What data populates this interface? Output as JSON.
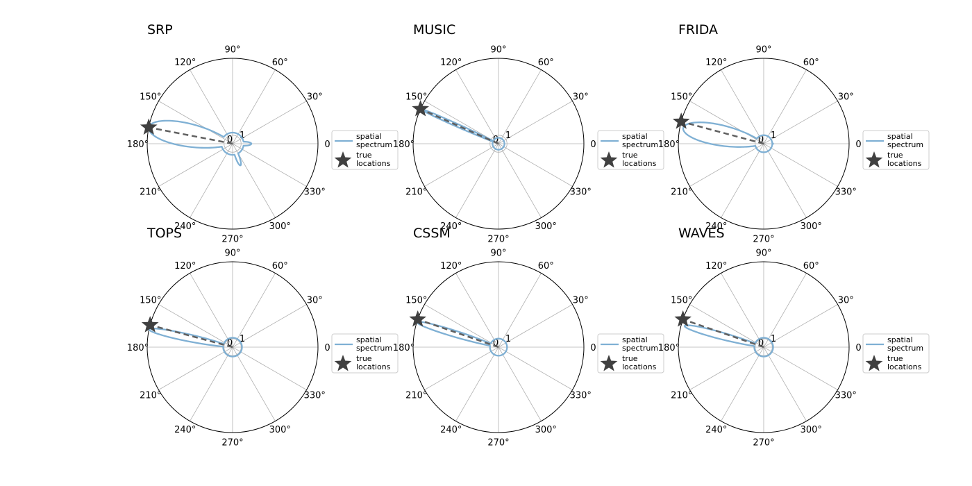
{
  "colors": {
    "spectrum": "#7fb0d4",
    "true_location": "#404040",
    "dashed": "#606060",
    "grid": "#b0b0b0",
    "frame": "#000000"
  },
  "chart_data": [
    {
      "type": "polar-line",
      "title": "SRP",
      "angle_ticks": [
        "0",
        "30°",
        "60°",
        "90°",
        "120°",
        "150°",
        "180°",
        "210°",
        "240°",
        "270°",
        "300°",
        "330°"
      ],
      "radial_ticks": [
        "0",
        "1"
      ],
      "true_location_deg": 169,
      "spectrum": {
        "floor": 0.13,
        "lobes": [
          {
            "center_deg": 169,
            "width_deg": 13,
            "height": 1.0
          },
          {
            "center_deg": 0,
            "width_deg": 10,
            "height": 0.22
          },
          {
            "center_deg": 290,
            "width_deg": 8,
            "height": 0.27
          },
          {
            "center_deg": 120,
            "width_deg": 12,
            "height": 0.1
          }
        ]
      },
      "legend": [
        "spatial\n spectrum",
        "true\n locations"
      ]
    },
    {
      "type": "polar-line",
      "title": "MUSIC",
      "angle_ticks": [
        "0",
        "30°",
        "60°",
        "90°",
        "120°",
        "150°",
        "180°",
        "210°",
        "240°",
        "270°",
        "300°",
        "330°"
      ],
      "radial_ticks": [
        "0",
        "1"
      ],
      "true_location_deg": 156,
      "spectrum": {
        "floor": 0.07,
        "lobes": [
          {
            "center_deg": 156,
            "width_deg": 1.6,
            "height": 1.0
          }
        ]
      },
      "legend": [
        "spatial\n spectrum",
        "true\n locations"
      ]
    },
    {
      "type": "polar-line",
      "title": "FRIDA",
      "angle_ticks": [
        "0",
        "30°",
        "60°",
        "90°",
        "120°",
        "150°",
        "180°",
        "210°",
        "240°",
        "270°",
        "300°",
        "330°"
      ],
      "radial_ticks": [
        "0",
        "1"
      ],
      "true_location_deg": 165,
      "spectrum": {
        "floor": 0.1,
        "lobes": [
          {
            "center_deg": 169,
            "width_deg": 12,
            "height": 0.96
          },
          {
            "center_deg": 0,
            "width_deg": 10,
            "height": 0.11
          },
          {
            "center_deg": 270,
            "width_deg": 12,
            "height": 0.08
          }
        ]
      },
      "legend": [
        "spatial\n spectrum",
        "true\n locations"
      ]
    },
    {
      "type": "polar-line",
      "title": "TOPS",
      "angle_ticks": [
        "0",
        "30°",
        "60°",
        "90°",
        "120°",
        "150°",
        "180°",
        "210°",
        "240°",
        "270°",
        "300°",
        "330°"
      ],
      "radial_ticks": [
        "0",
        "1"
      ],
      "true_location_deg": 165,
      "spectrum": {
        "floor": 0.11,
        "lobes": [
          {
            "center_deg": 168,
            "width_deg": 4,
            "height": 1.0
          }
        ]
      },
      "legend": [
        "spatial\n spectrum",
        "true\n locations"
      ]
    },
    {
      "type": "polar-line",
      "title": "CSSM",
      "angle_ticks": [
        "0",
        "30°",
        "60°",
        "90°",
        "120°",
        "150°",
        "180°",
        "210°",
        "240°",
        "270°",
        "300°",
        "330°"
      ],
      "radial_ticks": [
        "0",
        "1"
      ],
      "true_location_deg": 161,
      "spectrum": {
        "floor": 0.1,
        "lobes": [
          {
            "center_deg": 163,
            "width_deg": 3.5,
            "height": 1.0
          },
          {
            "center_deg": 320,
            "width_deg": 10,
            "height": 0.07
          }
        ]
      },
      "legend": [
        "spatial\n spectrum",
        "true\n locations"
      ]
    },
    {
      "type": "polar-line",
      "title": "WAVES",
      "angle_ticks": [
        "0",
        "30°",
        "60°",
        "90°",
        "120°",
        "150°",
        "180°",
        "210°",
        "240°",
        "270°",
        "300°",
        "330°"
      ],
      "radial_ticks": [
        "0",
        "1"
      ],
      "true_location_deg": 161,
      "spectrum": {
        "floor": 0.11,
        "lobes": [
          {
            "center_deg": 165,
            "width_deg": 4,
            "height": 0.96
          },
          {
            "center_deg": 30,
            "width_deg": 8,
            "height": 0.09
          },
          {
            "center_deg": 300,
            "width_deg": 10,
            "height": 0.1
          }
        ]
      },
      "legend": [
        "spatial\n spectrum",
        "true\n locations"
      ]
    }
  ]
}
